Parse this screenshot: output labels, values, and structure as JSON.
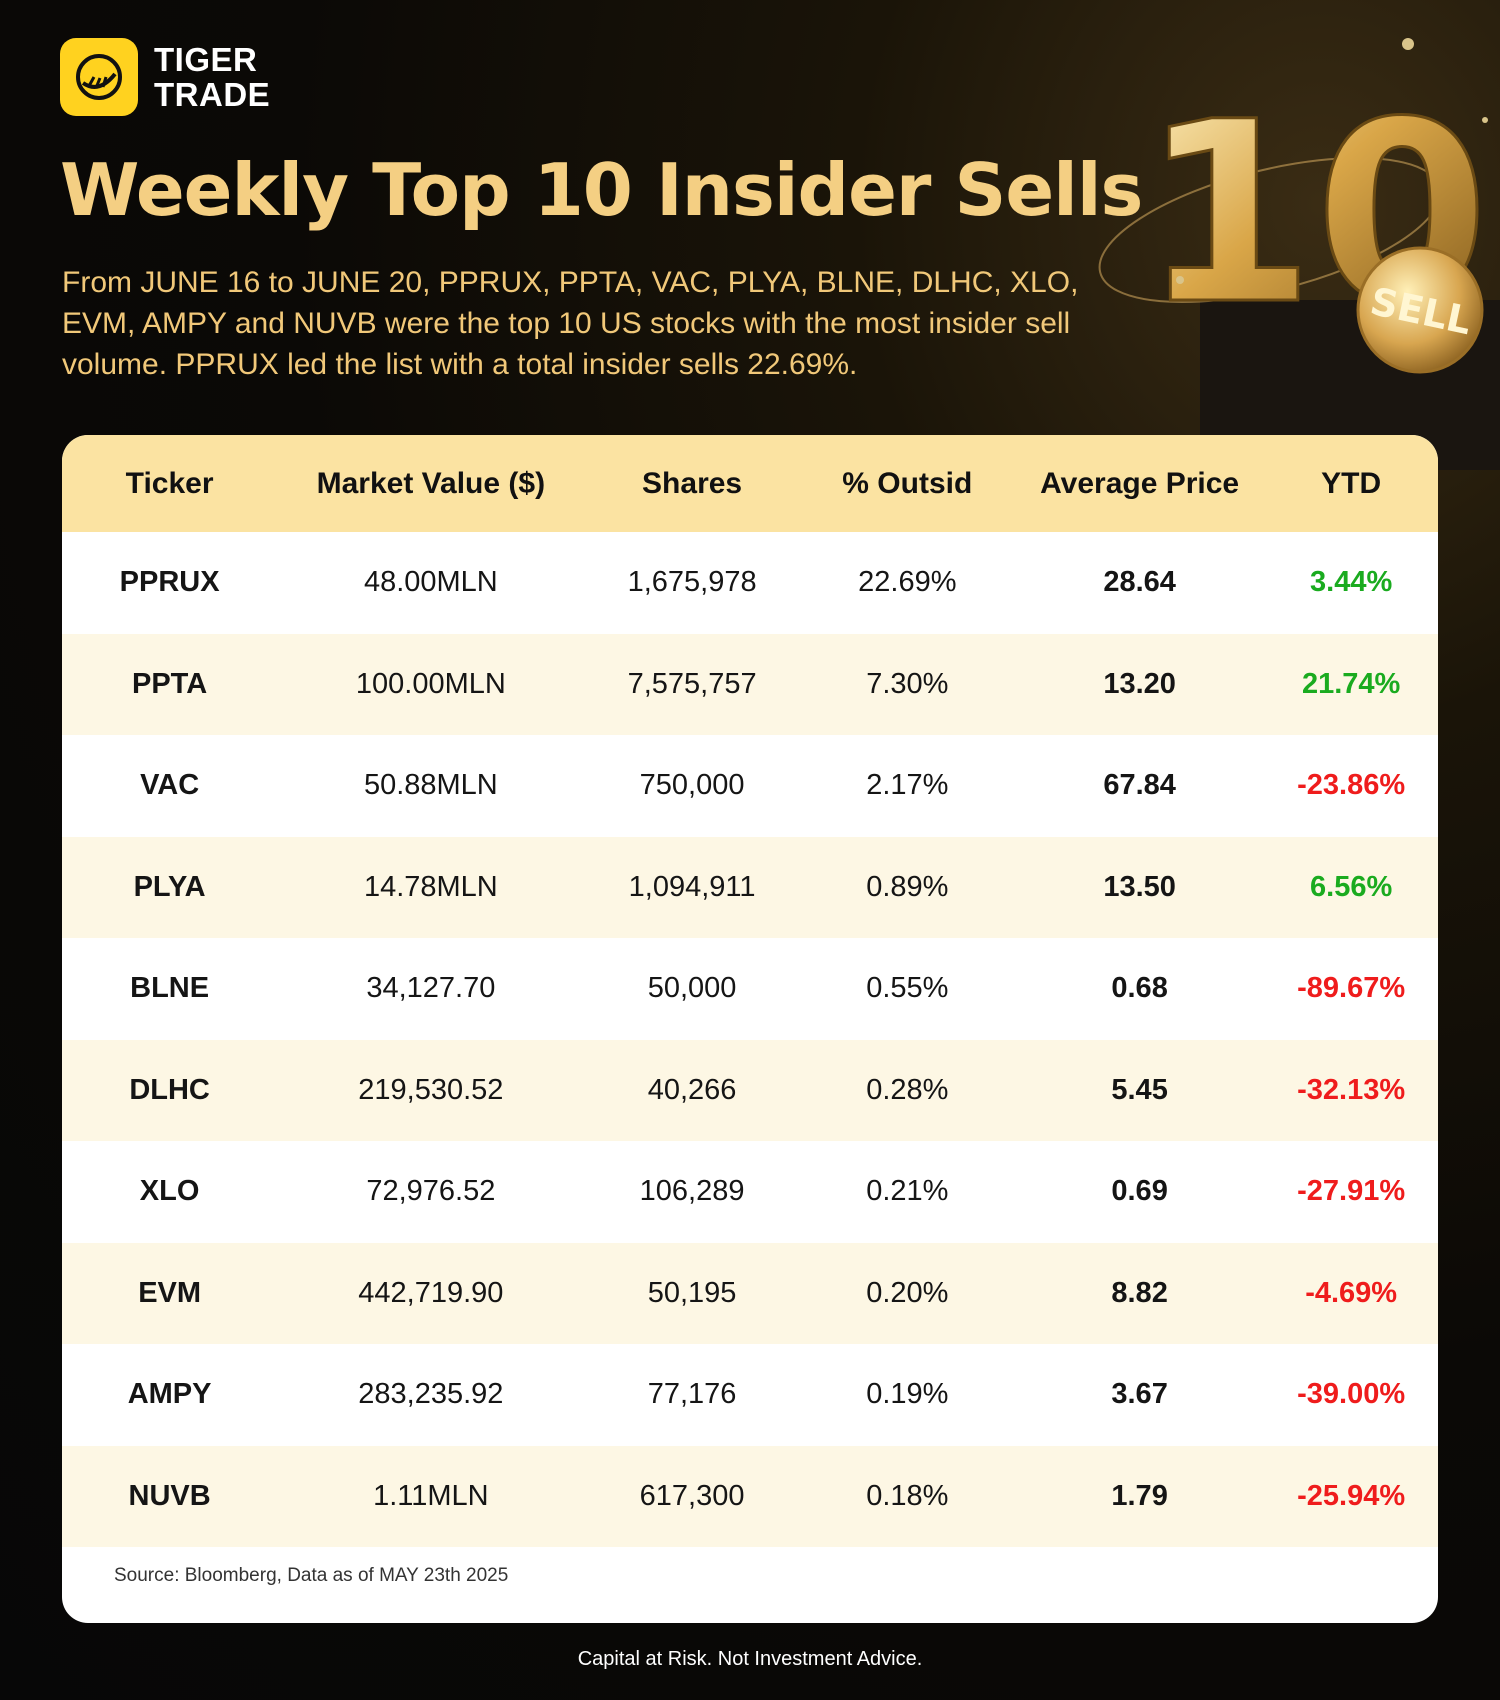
{
  "brand": {
    "line1": "TIGER",
    "line2": "TRADE",
    "logo_icon": "tiger-claw-icon",
    "color": "#ffd21f"
  },
  "title": "Weekly Top 10 Insider Sells",
  "subtitle": "From JUNE 16 to JUNE 20, PPRUX, PPTA, VAC, PLYA, BLNE, DLHC, XLO, EVM, AMPY and NUVB were the top 10 US stocks with the most insider sell volume. PPRUX led the list with a total insider sells 22.69%.",
  "hero": {
    "number": "10",
    "coin_label": "SELL"
  },
  "table": {
    "headers": [
      "Ticker",
      "Market Value ($)",
      "Shares",
      "% Outsid",
      "Average Price",
      "YTD"
    ],
    "rows": [
      [
        "PPRUX",
        "48.00MLN",
        "1,675,978",
        "22.69%",
        "28.64",
        "3.44%"
      ],
      [
        "PPTA",
        "100.00MLN",
        "7,575,757",
        "7.30%",
        "13.20",
        "21.74%"
      ],
      [
        "VAC",
        "50.88MLN",
        "750,000",
        "2.17%",
        "67.84",
        "-23.86%"
      ],
      [
        "PLYA",
        "14.78MLN",
        "1,094,911",
        "0.89%",
        "13.50",
        "6.56%"
      ],
      [
        "BLNE",
        "34,127.70",
        "50,000",
        "0.55%",
        "0.68",
        "-89.67%"
      ],
      [
        "DLHC",
        "219,530.52",
        "40,266",
        "0.28%",
        "5.45",
        "-32.13%"
      ],
      [
        "XLO",
        "72,976.52",
        "106,289",
        "0.21%",
        "0.69",
        "-27.91%"
      ],
      [
        "EVM",
        "442,719.90",
        "50,195",
        "0.20%",
        "8.82",
        "-4.69%"
      ],
      [
        "AMPY",
        "283,235.92",
        "77,176",
        "0.19%",
        "3.67",
        "-39.00%"
      ],
      [
        "NUVB",
        "1.11MLN",
        "617,300",
        "0.18%",
        "1.79",
        "-25.94%"
      ]
    ]
  },
  "colors": {
    "title": "#f4cf83",
    "header_bg": "#fbe3a2",
    "positive": "#1aab1f",
    "negative": "#ef1c1c"
  },
  "source": "Source: Bloomberg, Data as of MAY 23th 2025",
  "disclaimer": "Capital at Risk. Not Investment Advice."
}
